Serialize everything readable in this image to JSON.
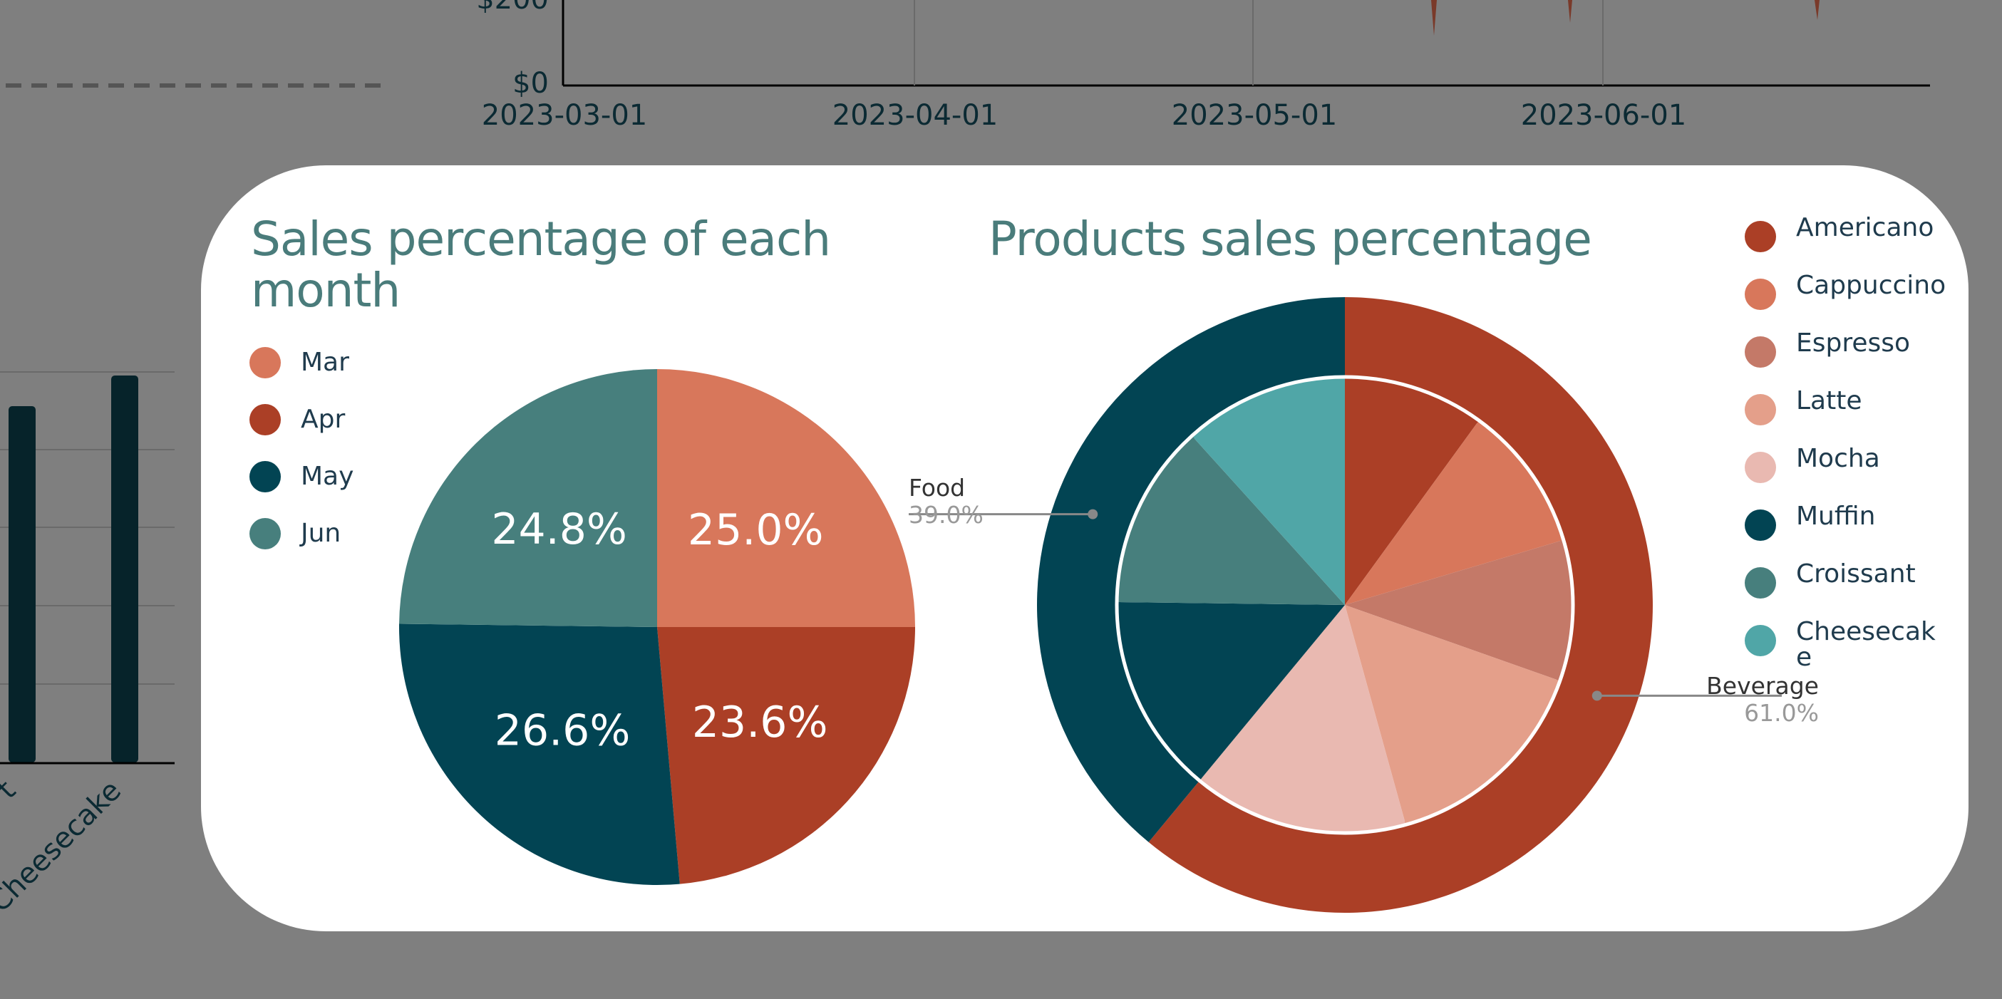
{
  "colors": {
    "page_overlay": "#7f7f7f",
    "title": "#4a7c7b",
    "months": [
      "#d8775b",
      "#ab3f26",
      "#024453",
      "#477f7d"
    ],
    "products": [
      "#ab3f26",
      "#d8775b",
      "#c47968",
      "#e49f8a",
      "#e9b9b1",
      "#024453",
      "#477f7d",
      "#50a6a7"
    ],
    "groups": [
      "#024453",
      "#ab3f26"
    ]
  },
  "background": {
    "line_chart": {
      "y_ticks": [
        "$0",
        "$200"
      ],
      "x_ticks": [
        "2023-03-01",
        "2023-04-01",
        "2023-05-01",
        "2023-06-01"
      ]
    },
    "bar_chart": {
      "x_ticks": [
        "t",
        "Cheesecake"
      ]
    }
  },
  "chart_data": [
    {
      "type": "pie",
      "title": "Sales percentage of each month",
      "categories": [
        "Mar",
        "Apr",
        "May",
        "Jun"
      ],
      "values": [
        25.0,
        23.6,
        26.6,
        24.8
      ],
      "labels": [
        "25.0%",
        "23.6%",
        "26.6%",
        "24.8%"
      ],
      "legend": "top-left"
    },
    {
      "type": "pie",
      "title": "Products sales percentage",
      "inner": {
        "categories": [
          "Americano",
          "Cappuccino",
          "Espresso",
          "Latte",
          "Mocha",
          "Muffin",
          "Croissant",
          "Cheesecake"
        ],
        "values": [
          10.0,
          10.4,
          10.0,
          15.3,
          15.3,
          14.2,
          13.1,
          11.7
        ]
      },
      "outer": {
        "categories": [
          "Food",
          "Beverage"
        ],
        "values": [
          39.0,
          61.0
        ],
        "labels": [
          "39.0%",
          "61.0%"
        ]
      },
      "legend": "right",
      "legend_labels": [
        "Americano",
        "Cappuccino",
        "Espresso",
        "Latte",
        "Mocha",
        "Muffin",
        "Croissant",
        "Cheesecak\ne"
      ]
    }
  ]
}
